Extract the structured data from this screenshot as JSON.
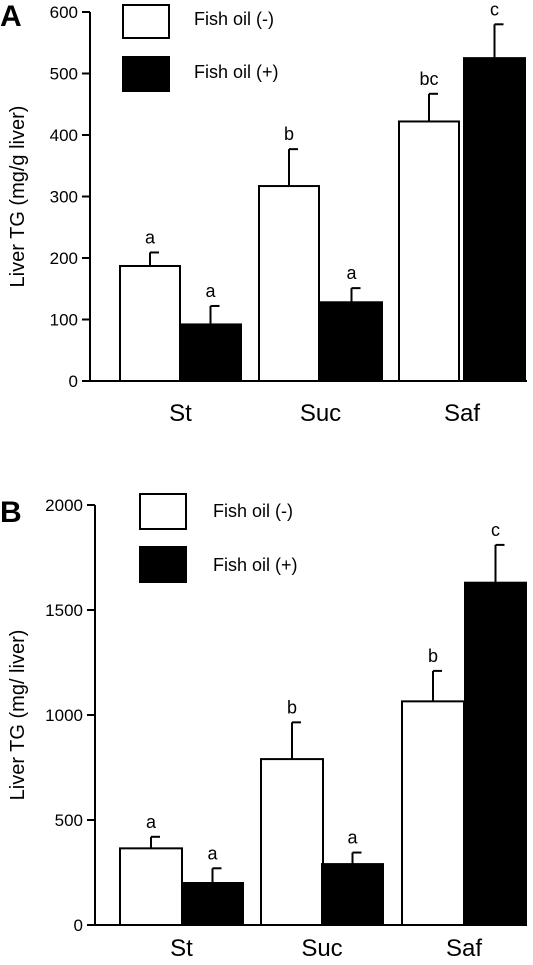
{
  "chart_data": [
    {
      "type": "bar",
      "panel": "A",
      "ylabel": "Liver TG (mg/g liver)",
      "xlabel": "",
      "categories": [
        "St",
        "Suc",
        "Saf"
      ],
      "ylim": [
        0,
        600
      ],
      "yticks": [
        "0",
        "100",
        "200",
        "300",
        "400",
        "500",
        "600"
      ],
      "legend_position": "top-left",
      "series": [
        {
          "name": "Fish oil (-)",
          "color": "#ffffff",
          "values": [
            187,
            317,
            422
          ],
          "errors": [
            22,
            60,
            45
          ],
          "labels": [
            "a",
            "b",
            "bc"
          ]
        },
        {
          "name": "Fish oil (+)",
          "color": "#000000",
          "values": [
            92,
            128,
            525
          ],
          "errors": [
            30,
            23,
            55
          ],
          "labels": [
            "a",
            "a",
            "c"
          ]
        }
      ]
    },
    {
      "type": "bar",
      "panel": "B",
      "ylabel": "Liver TG (mg/ liver)",
      "xlabel": "",
      "categories": [
        "St",
        "Suc",
        "Saf"
      ],
      "ylim": [
        0,
        2000
      ],
      "yticks": [
        "0",
        "500",
        "1000",
        "1500",
        "2000"
      ],
      "legend_position": "top-left",
      "series": [
        {
          "name": "Fish oil (-)",
          "color": "#ffffff",
          "values": [
            365,
            790,
            1065
          ],
          "errors": [
            55,
            175,
            145
          ],
          "labels": [
            "a",
            "b",
            "b"
          ]
        },
        {
          "name": "Fish oil (+)",
          "color": "#000000",
          "values": [
            200,
            290,
            1630
          ],
          "errors": [
            70,
            55,
            180
          ],
          "labels": [
            "a",
            "a",
            "c"
          ]
        }
      ]
    }
  ]
}
